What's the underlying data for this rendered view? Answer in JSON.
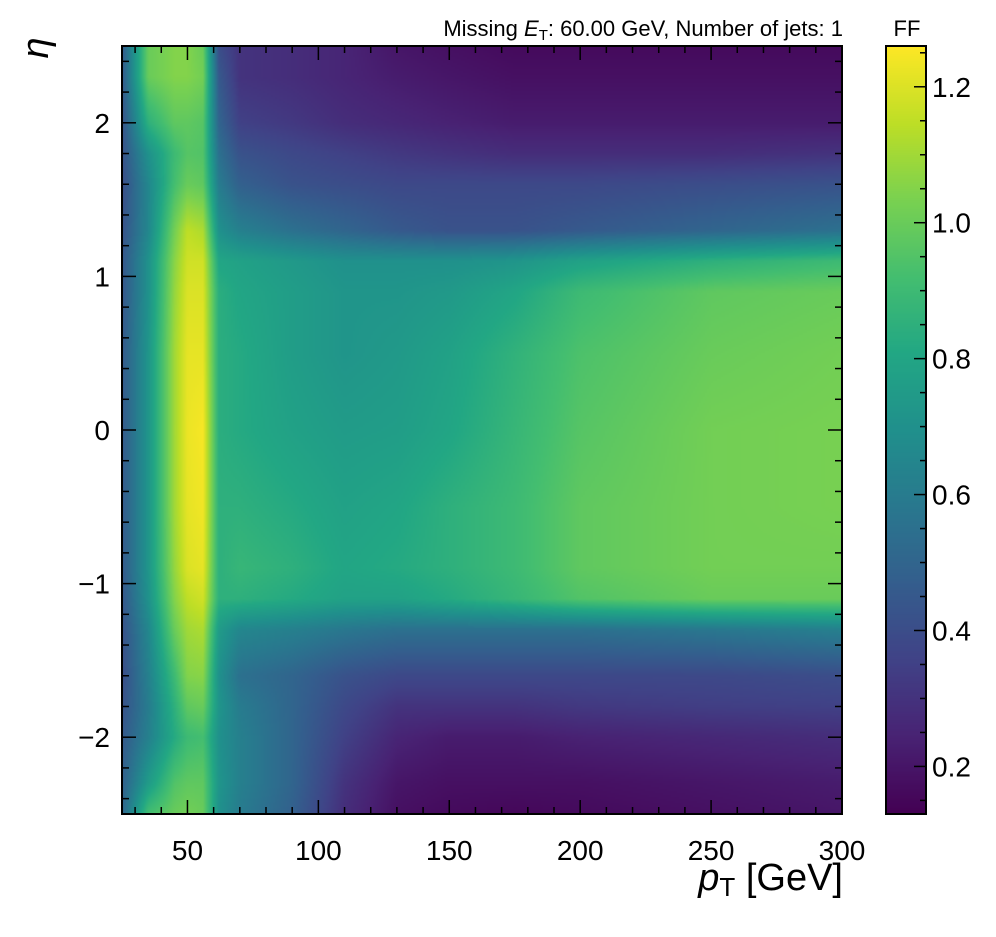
{
  "chart_data": {
    "type": "heatmap",
    "title": "Missing E_T: 60.00 GeV, Number of jets: 1",
    "title_parts": {
      "prefix": "Missing ",
      "symbol": "E",
      "subscript": "T",
      "suffix": ": 60.00 GeV, Number of jets: 1"
    },
    "xlabel": "p_T [GeV]",
    "xlabel_parts": {
      "symbol": "p",
      "subscript": "T",
      "unit": " [GeV]"
    },
    "ylabel": "η",
    "colorbar_label": "FF",
    "colormap": "viridis",
    "xlim": [
      25,
      300
    ],
    "ylim": [
      -2.5,
      2.5
    ],
    "zlim": [
      0.13,
      1.26
    ],
    "x_ticks": [
      50,
      100,
      150,
      200,
      250,
      300
    ],
    "x_tick_labels": [
      "50",
      "100",
      "150",
      "200",
      "250",
      "300"
    ],
    "y_ticks": [
      -2,
      -1,
      0,
      1,
      2
    ],
    "y_tick_labels": [
      "−2",
      "−1",
      "0",
      "1",
      "2"
    ],
    "colorbar_ticks": [
      0.2,
      0.4,
      0.6,
      0.8,
      1.0,
      1.2
    ],
    "colorbar_tick_labels": [
      "0.2",
      "0.4",
      "0.6",
      "0.8",
      "1.0",
      "1.2"
    ],
    "eta_grid": [
      -2.5,
      -2.3,
      -2.0,
      -1.8,
      -1.6,
      -1.3,
      -1.1,
      -0.9,
      -0.5,
      0.0,
      0.5,
      0.9,
      1.1,
      1.3,
      1.6,
      1.8,
      2.0,
      2.3,
      2.5
    ],
    "pt_grid": [
      25,
      35,
      45,
      50,
      56,
      62,
      70,
      90,
      110,
      130,
      150,
      175,
      200,
      250,
      300
    ],
    "values": [
      [
        0.5,
        0.92,
        1.0,
        1.02,
        1.0,
        0.7,
        0.6,
        0.48,
        0.28,
        0.18,
        0.16,
        0.15,
        0.16,
        0.18,
        0.2
      ],
      [
        0.48,
        0.75,
        0.95,
        0.98,
        0.98,
        0.72,
        0.62,
        0.5,
        0.3,
        0.2,
        0.18,
        0.18,
        0.18,
        0.2,
        0.22
      ],
      [
        0.45,
        0.62,
        0.82,
        0.9,
        0.92,
        0.7,
        0.62,
        0.5,
        0.35,
        0.25,
        0.22,
        0.22,
        0.24,
        0.26,
        0.28
      ],
      [
        0.42,
        0.6,
        0.85,
        0.98,
        1.0,
        0.72,
        0.6,
        0.5,
        0.38,
        0.3,
        0.3,
        0.3,
        0.32,
        0.34,
        0.35
      ],
      [
        0.4,
        0.62,
        0.9,
        1.05,
        1.06,
        0.7,
        0.55,
        0.5,
        0.42,
        0.38,
        0.38,
        0.38,
        0.38,
        0.38,
        0.4
      ],
      [
        0.42,
        0.65,
        1.0,
        1.1,
        1.12,
        0.75,
        0.65,
        0.62,
        0.58,
        0.55,
        0.55,
        0.55,
        0.55,
        0.58,
        0.62
      ],
      [
        0.44,
        0.7,
        1.05,
        1.15,
        1.18,
        0.85,
        0.85,
        0.82,
        0.78,
        0.78,
        0.82,
        0.88,
        0.95,
        1.0,
        1.0
      ],
      [
        0.45,
        0.72,
        1.08,
        1.2,
        1.22,
        0.85,
        0.88,
        0.85,
        0.8,
        0.82,
        0.85,
        0.9,
        0.98,
        1.02,
        1.02
      ],
      [
        0.45,
        0.72,
        1.1,
        1.22,
        1.24,
        0.85,
        0.85,
        0.82,
        0.78,
        0.8,
        0.85,
        0.9,
        0.98,
        1.02,
        1.03
      ],
      [
        0.45,
        0.72,
        1.1,
        1.23,
        1.25,
        0.84,
        0.82,
        0.78,
        0.75,
        0.76,
        0.8,
        0.88,
        0.96,
        1.02,
        1.03
      ],
      [
        0.45,
        0.72,
        1.1,
        1.22,
        1.22,
        0.84,
        0.82,
        0.76,
        0.72,
        0.74,
        0.78,
        0.86,
        0.94,
        1.0,
        1.02
      ],
      [
        0.44,
        0.7,
        1.08,
        1.2,
        1.2,
        0.84,
        0.8,
        0.76,
        0.72,
        0.72,
        0.74,
        0.8,
        0.9,
        0.98,
        1.0
      ],
      [
        0.44,
        0.7,
        1.06,
        1.18,
        1.18,
        0.8,
        0.78,
        0.74,
        0.7,
        0.7,
        0.7,
        0.72,
        0.78,
        0.85,
        0.9
      ],
      [
        0.42,
        0.65,
        1.02,
        1.15,
        1.12,
        0.7,
        0.62,
        0.55,
        0.5,
        0.45,
        0.42,
        0.42,
        0.45,
        0.5,
        0.55
      ],
      [
        0.4,
        0.65,
        0.92,
        1.0,
        0.98,
        0.6,
        0.48,
        0.42,
        0.4,
        0.38,
        0.38,
        0.38,
        0.38,
        0.4,
        0.42
      ],
      [
        0.42,
        0.7,
        0.9,
        0.96,
        0.95,
        0.55,
        0.42,
        0.38,
        0.35,
        0.32,
        0.3,
        0.28,
        0.28,
        0.28,
        0.3
      ],
      [
        0.42,
        0.85,
        0.98,
        0.98,
        0.96,
        0.5,
        0.35,
        0.32,
        0.28,
        0.26,
        0.24,
        0.22,
        0.22,
        0.22,
        0.22
      ],
      [
        0.45,
        1.0,
        1.05,
        1.05,
        1.02,
        0.45,
        0.3,
        0.28,
        0.25,
        0.22,
        0.2,
        0.18,
        0.18,
        0.18,
        0.18
      ],
      [
        0.45,
        1.0,
        1.05,
        1.05,
        1.0,
        0.4,
        0.3,
        0.28,
        0.25,
        0.2,
        0.18,
        0.16,
        0.16,
        0.16,
        0.16
      ]
    ]
  }
}
